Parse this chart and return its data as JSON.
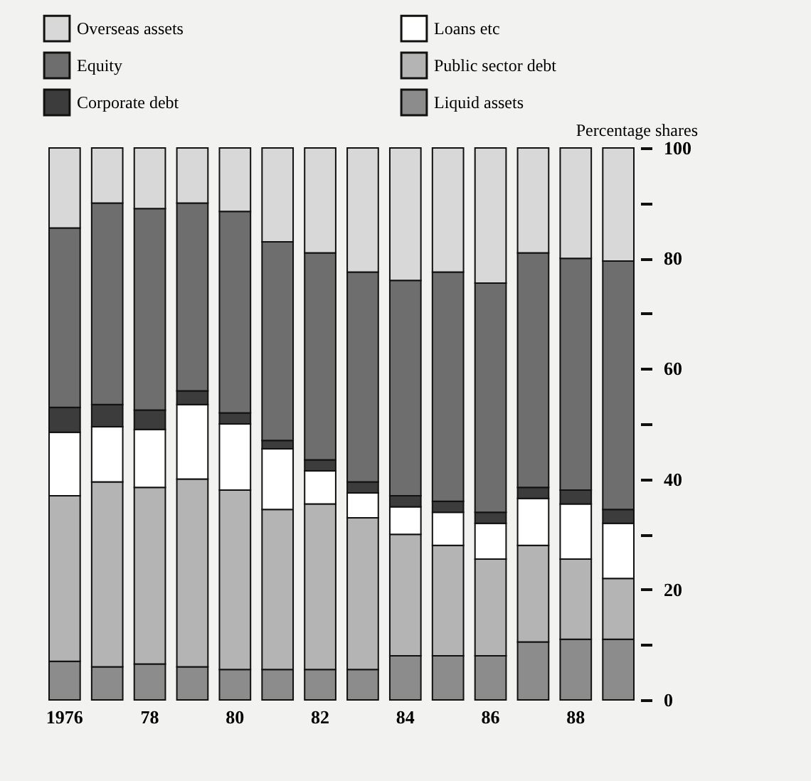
{
  "chart_data": {
    "type": "bar",
    "stacked": true,
    "ylabel": "Percentage shares",
    "categories": [
      "1976",
      null,
      "78",
      null,
      "80",
      null,
      "82",
      null,
      "84",
      null,
      "86",
      null,
      "88",
      null
    ],
    "series": [
      {
        "name": "Liquid assets",
        "color": "#8c8c8c",
        "values": [
          7,
          6,
          6.5,
          6,
          5.5,
          5.5,
          5.5,
          5.5,
          8,
          8,
          8,
          10.5,
          11,
          11
        ]
      },
      {
        "name": "Public sector debt",
        "color": "#b4b4b4",
        "values": [
          30,
          33.5,
          32,
          34,
          32.5,
          29,
          30,
          27.5,
          22,
          20,
          17.5,
          17.5,
          14.5,
          11
        ]
      },
      {
        "name": "Loans etc",
        "color": "#ffffff",
        "values": [
          11.5,
          10,
          10.5,
          13.5,
          12,
          11,
          6,
          4.5,
          5,
          6,
          6.5,
          8.5,
          10,
          10
        ]
      },
      {
        "name": "Corporate debt",
        "color": "#3c3c3c",
        "values": [
          4.5,
          4,
          3.5,
          2.5,
          2,
          1.5,
          2,
          2,
          2,
          2,
          2,
          2,
          2.5,
          2.5
        ]
      },
      {
        "name": "Equity",
        "color": "#6e6e6e",
        "values": [
          32.5,
          36.5,
          36.5,
          34,
          36.5,
          36,
          37.5,
          38,
          39,
          41.5,
          41.5,
          42.5,
          42,
          45
        ]
      },
      {
        "name": "Overseas assets",
        "color": "#d8d8d8",
        "values": [
          14.5,
          10,
          11,
          10,
          11.5,
          17,
          19,
          22.5,
          24,
          22.5,
          24.5,
          19,
          20,
          20.5
        ]
      }
    ],
    "ylim": [
      0,
      100
    ],
    "yticks": [
      0,
      {
        "value": 10,
        "label": null
      },
      20,
      {
        "value": 30,
        "label": null
      },
      40,
      {
        "value": 50,
        "label": null
      },
      60,
      {
        "value": 70,
        "label": null
      },
      80,
      {
        "value": 90,
        "label": null
      },
      100
    ],
    "grid": false,
    "legend": "top left"
  }
}
